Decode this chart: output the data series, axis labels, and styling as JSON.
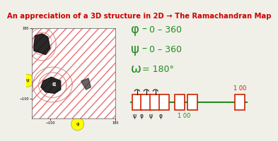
{
  "title": "An appreciation of a 3D structure in 2D → The Ramachandran Map",
  "title_color": "#cc0000",
  "title_fontsize": 7.2,
  "bg_color": "#f0f0e8",
  "green": "#228B22",
  "red": "#cc2200",
  "black": "#111111",
  "yellow": "#ffff00"
}
